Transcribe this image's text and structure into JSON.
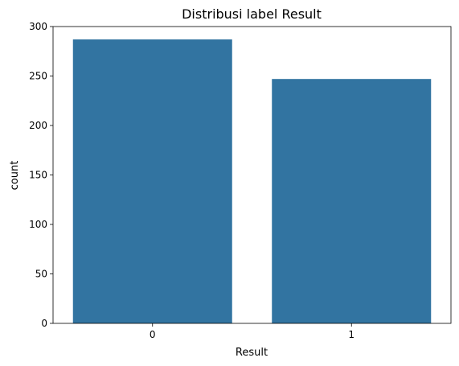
{
  "chart_data": {
    "type": "bar",
    "title": "Distribusi label Result",
    "xlabel": "Result",
    "ylabel": "count",
    "categories": [
      "0",
      "1"
    ],
    "values": [
      287,
      247
    ],
    "ylim": [
      0,
      300
    ],
    "yticks": [
      0,
      50,
      100,
      150,
      200,
      250,
      300
    ],
    "grid": false,
    "bar_color": "#3274a1"
  }
}
